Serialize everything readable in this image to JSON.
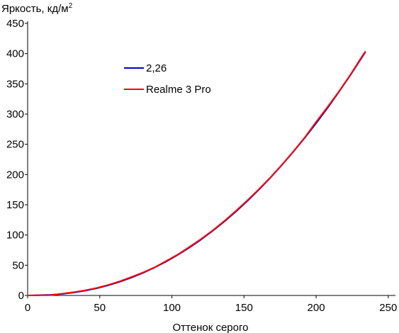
{
  "chart_data": {
    "type": "line",
    "title": "",
    "ylabel": "Яркость, кд/м",
    "ylabel_superscript": "2",
    "xlabel": "Оттенок серого",
    "xlim": [
      0,
      255
    ],
    "ylim": [
      0,
      450
    ],
    "xticks": [
      0,
      50,
      100,
      150,
      200,
      250
    ],
    "yticks": [
      0,
      50,
      100,
      150,
      200,
      250,
      300,
      350,
      400,
      450
    ],
    "grid": false,
    "legend_position": "upper-left-inside",
    "series": [
      {
        "name": "2,26",
        "color": "#0000cc",
        "x": [
          0,
          16,
          24,
          32,
          40,
          48,
          56,
          64,
          72,
          80,
          88,
          96,
          104,
          112,
          120,
          128,
          136,
          144,
          152,
          160,
          168,
          176,
          184,
          192,
          200,
          208,
          216,
          224,
          232,
          234
        ],
        "y": [
          0,
          1,
          2.5,
          4.8,
          7.9,
          11.9,
          16.8,
          22.7,
          29.5,
          37.3,
          46.1,
          56,
          66.9,
          78.9,
          92,
          106.2,
          121.5,
          137.9,
          155.4,
          174.1,
          193.9,
          214.9,
          237,
          260.3,
          284.8,
          310.4,
          337.3,
          365.3,
          394.6,
          402
        ]
      },
      {
        "name": "Realme 3 Pro",
        "color": "#ff0000",
        "x": [
          0,
          16,
          24,
          32,
          40,
          48,
          56,
          64,
          72,
          80,
          88,
          96,
          104,
          112,
          120,
          128,
          136,
          144,
          152,
          160,
          168,
          176,
          184,
          192,
          200,
          208,
          216,
          224,
          232,
          234
        ],
        "y": [
          0,
          0.5,
          3,
          5.5,
          8.5,
          12.5,
          17.5,
          23.5,
          30.5,
          38,
          46.5,
          57,
          67.5,
          80,
          93,
          107,
          122.5,
          139,
          156.5,
          175,
          194.5,
          215.5,
          237.5,
          261,
          287,
          312,
          338,
          366,
          396,
          403
        ]
      }
    ]
  }
}
